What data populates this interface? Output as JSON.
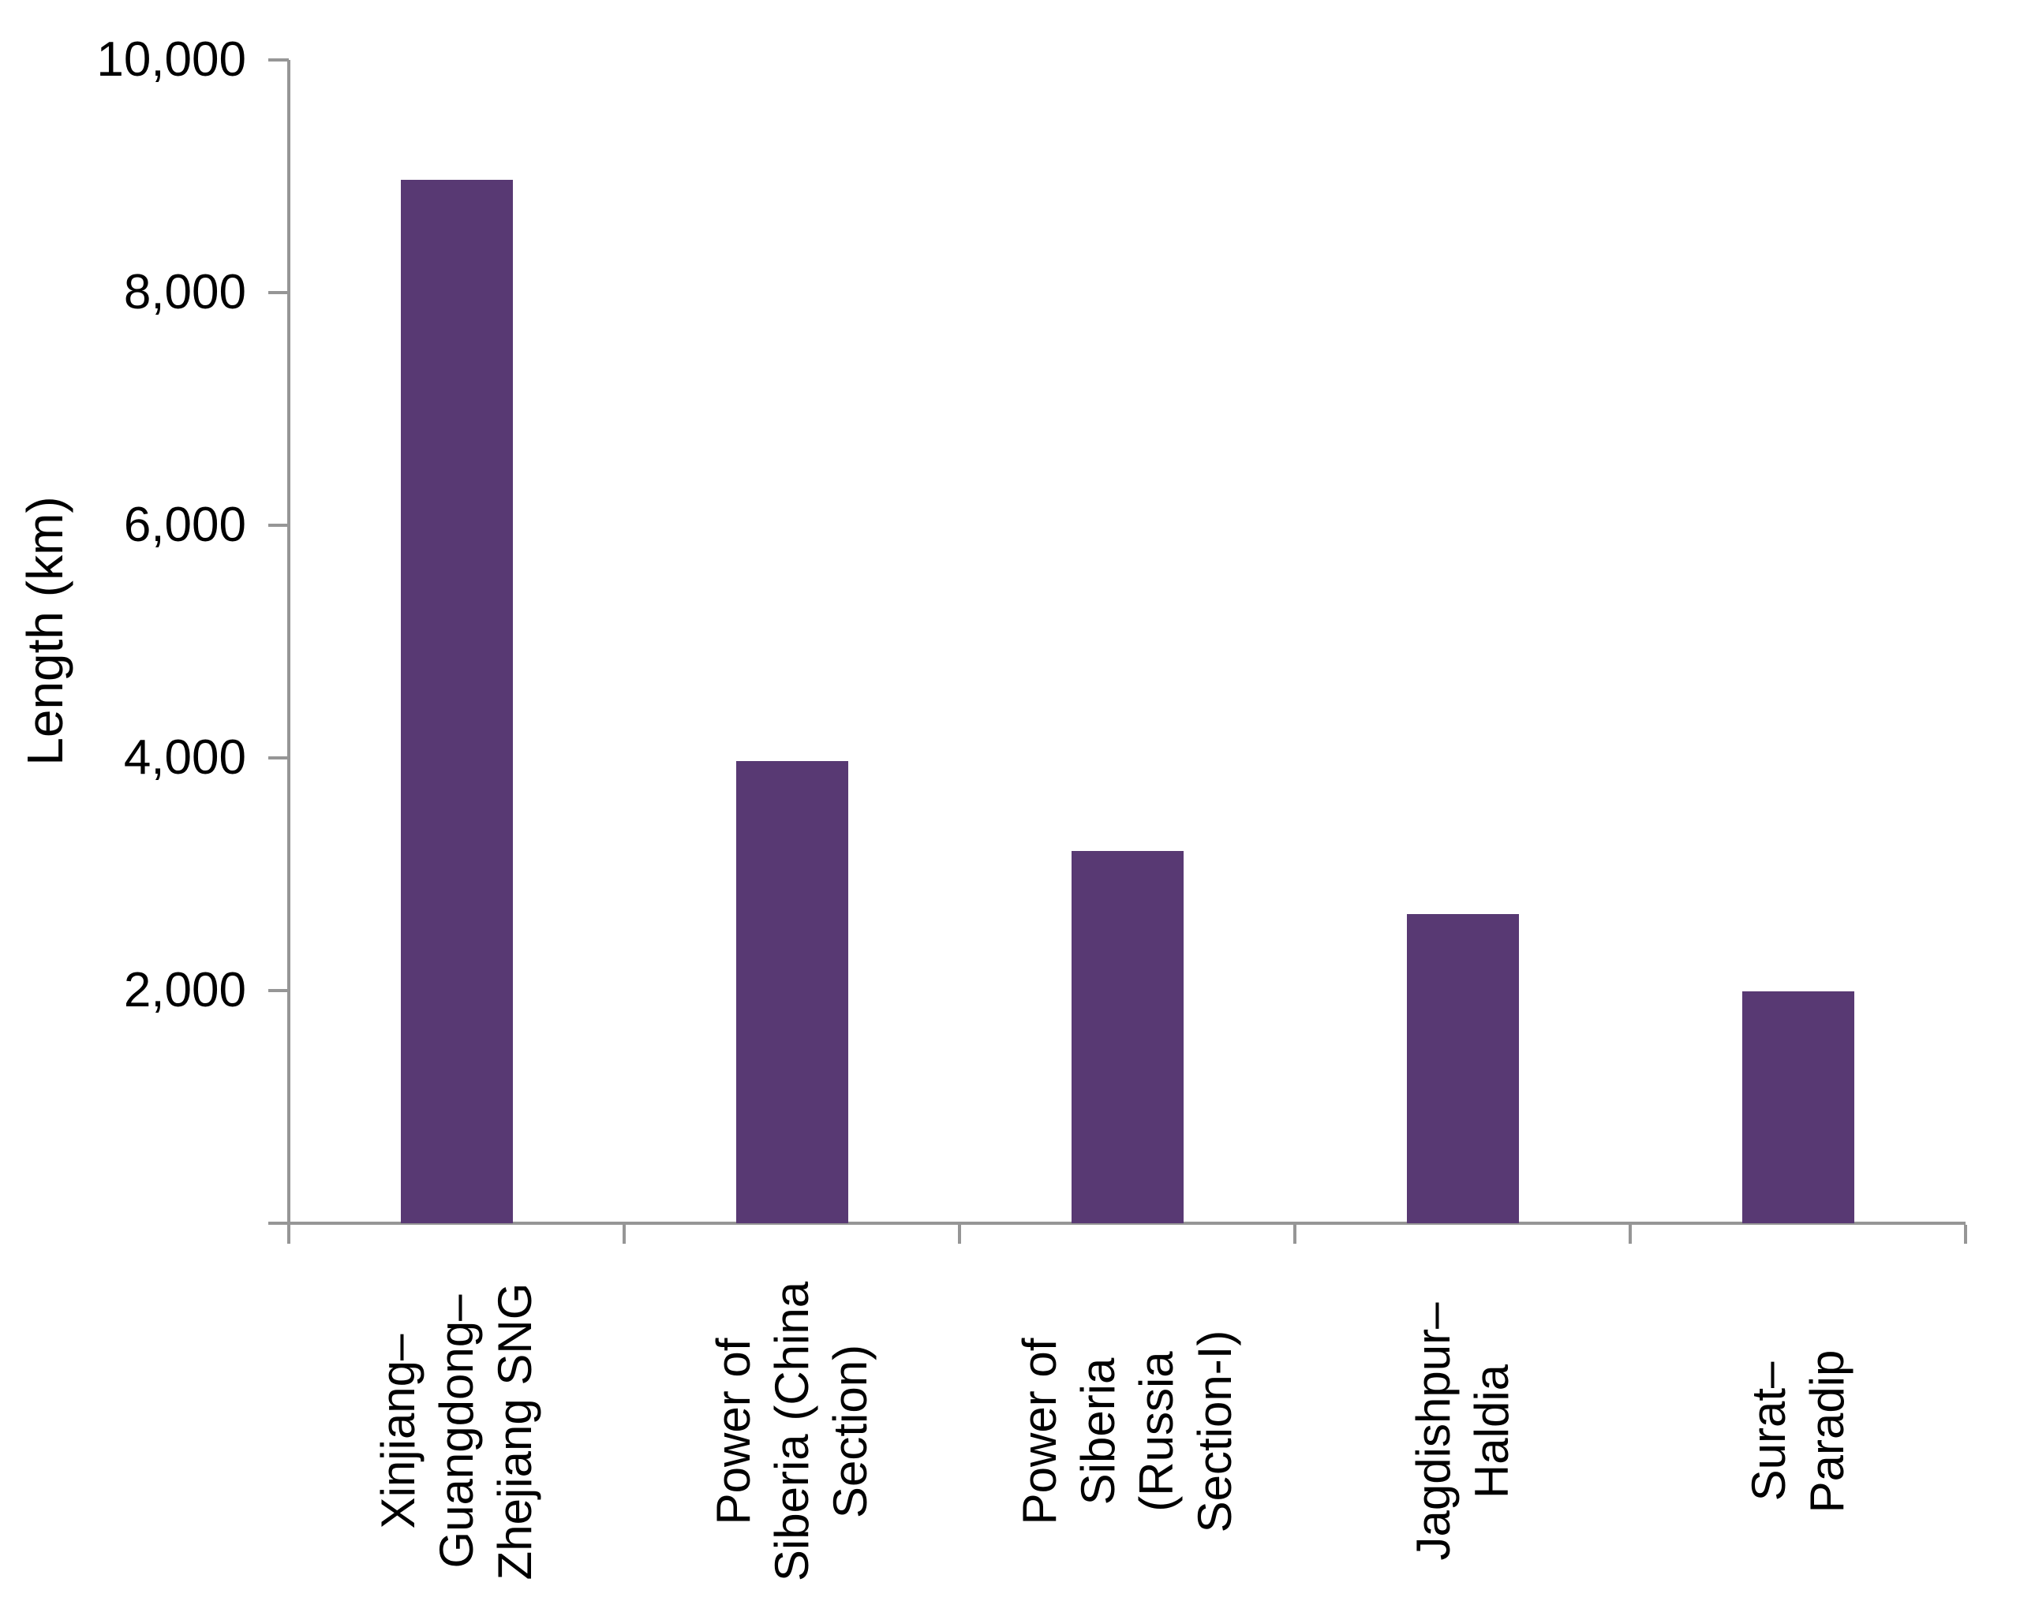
{
  "chart_data": {
    "type": "bar",
    "title": "",
    "categories": [
      "Xinjiang–\nGuangdong–\nZhejiang SNG",
      "Power of\nSiberia (China\nSection)",
      "Power of\nSiberia\n(Russia\nSection-I)",
      "Jagdishpur–\nHaldia",
      "Surat–\nParadip"
    ],
    "values": [
      8970,
      3970,
      3200,
      2655,
      1990
    ],
    "xlabel": "",
    "ylabel": "Length (km)",
    "ylim": [
      0,
      10000
    ],
    "y_ticks": [
      {
        "label": "10,000",
        "value": 10000
      },
      {
        "label": "8,000",
        "value": 8000
      },
      {
        "label": "6,000",
        "value": 6000
      },
      {
        "label": "4,000",
        "value": 4000
      },
      {
        "label": "2,000",
        "value": 2000
      }
    ],
    "grid": "off",
    "legend": "none",
    "bar_color": "#583973",
    "axis_color": "#969696",
    "text_color": "#000000"
  }
}
